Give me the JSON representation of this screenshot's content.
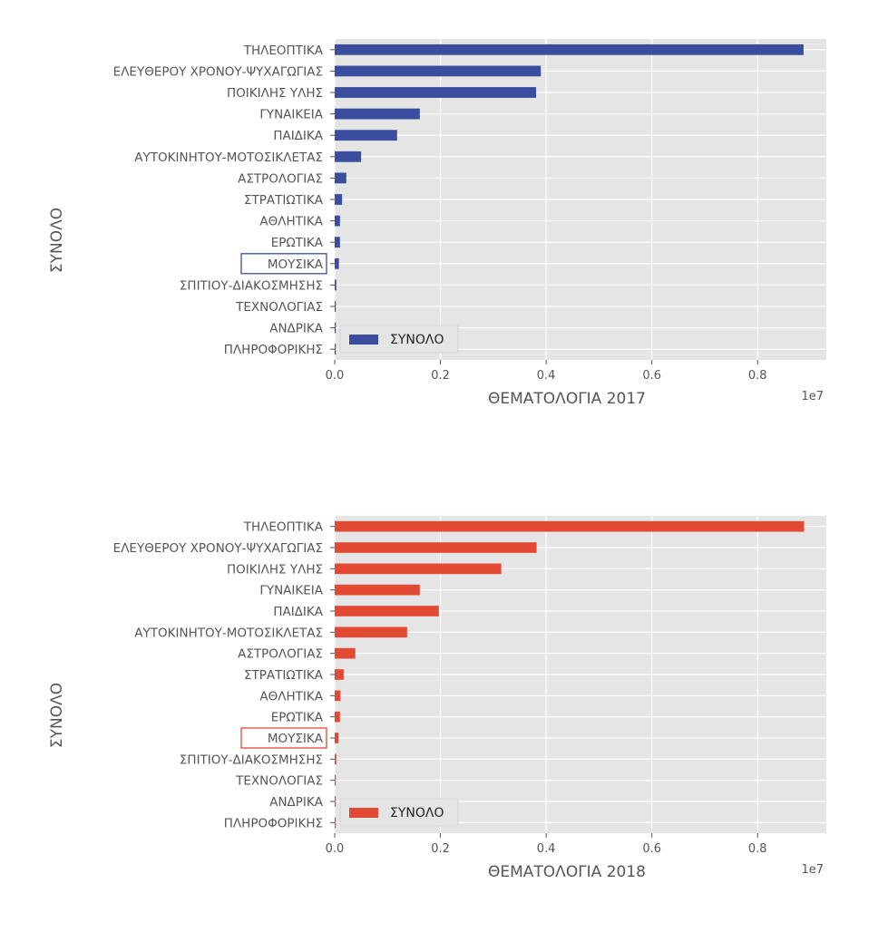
{
  "chart_data": [
    {
      "type": "bar",
      "orientation": "horizontal",
      "title": "",
      "ylabel": "ΣΥΝΟΛΟ",
      "xlabel": "ΘΕΜΑΤΟΛΟΓΙΑ 2017",
      "x_offset_label": "1e7",
      "xlim": [
        0,
        0.93
      ],
      "xticks": [
        "0.0",
        "0.2",
        "0.4",
        "0.6",
        "0.8"
      ],
      "xtick_values": [
        0.0,
        0.2,
        0.4,
        0.6,
        0.8
      ],
      "grid": true,
      "legend": {
        "position": "bottom-left",
        "label": "ΣΥΝΟΛΟ"
      },
      "color": "#3a4d9e",
      "highlighted_category": "ΜΟΥΣΙΚΑ",
      "categories": [
        "ΤΗΛΕΟΠΤΙΚΑ",
        "ΕΛΕΥΘΕΡΟΥ ΧΡΟΝΟΥ-ΨΥΧΑΓΩΓΙΑΣ",
        "ΠΟΙΚΙΛΗΣ ΥΛΗΣ",
        "ΓΥΝΑΙΚΕΙΑ",
        "ΠΑΙΔΙΚΑ",
        "ΑΥΤΟΚΙΝΗΤΟΥ-ΜΟΤΟΣΙΚΛΕΤΑΣ",
        "ΑΣΤΡΟΛΟΓΙΑΣ",
        "ΣΤΡΑΤΙΩΤΙΚΑ",
        "ΑΘΛΗΤΙΚΑ",
        "ΕΡΩΤΙΚΑ",
        "ΜΟΥΣΙΚΑ",
        "ΣΠΙΤΙΟΥ-ΔΙΑΚΟΣΜΗΣΗΣ",
        "ΤΕΧΝΟΛΟΓΙΑΣ",
        "ΑΝΔΡΙΚΑ",
        "ΠΛΗΡΟΦΟΡΙΚΗΣ"
      ],
      "values": [
        0.887,
        0.39,
        0.381,
        0.161,
        0.118,
        0.05,
        0.022,
        0.014,
        0.01,
        0.01,
        0.008,
        0.003,
        0.002,
        0.002,
        0.002
      ]
    },
    {
      "type": "bar",
      "orientation": "horizontal",
      "title": "",
      "ylabel": "ΣΥΝΟΛΟ",
      "xlabel": "ΘΕΜΑΤΟΛΟΓΙΑ 2018",
      "x_offset_label": "1e7",
      "xlim": [
        0,
        0.93
      ],
      "xticks": [
        "0.0",
        "0.2",
        "0.4",
        "0.6",
        "0.8"
      ],
      "xtick_values": [
        0.0,
        0.2,
        0.4,
        0.6,
        0.8
      ],
      "grid": true,
      "legend": {
        "position": "bottom-left",
        "label": "ΣΥΝΟΛΟ"
      },
      "color": "#e24a33",
      "highlighted_category": "ΜΟΥΣΙΚΑ",
      "categories": [
        "ΤΗΛΕΟΠΤΙΚΑ",
        "ΕΛΕΥΘΕΡΟΥ ΧΡΟΝΟΥ-ΨΥΧΑΓΩΓΙΑΣ",
        "ΠΟΙΚΙΛΗΣ ΥΛΗΣ",
        "ΓΥΝΑΙΚΕΙΑ",
        "ΠΑΙΔΙΚΑ",
        "ΑΥΤΟΚΙΝΗΤΟΥ-ΜΟΤΟΣΙΚΛΕΤΑΣ",
        "ΑΣΤΡΟΛΟΓΙΑΣ",
        "ΣΤΡΑΤΙΩΤΙΚΑ",
        "ΑΘΛΗΤΙΚΑ",
        "ΕΡΩΤΙΚΑ",
        "ΜΟΥΣΙΚΑ",
        "ΣΠΙΤΙΟΥ-ΔΙΑΚΟΣΜΗΣΗΣ",
        "ΤΕΧΝΟΛΟΓΙΑΣ",
        "ΑΝΔΡΙΚΑ",
        "ΠΛΗΡΟΦΟΡΙΚΗΣ"
      ],
      "values": [
        0.888,
        0.382,
        0.315,
        0.161,
        0.197,
        0.137,
        0.039,
        0.017,
        0.011,
        0.01,
        0.007,
        0.003,
        0.002,
        0.002,
        0.002
      ]
    }
  ]
}
